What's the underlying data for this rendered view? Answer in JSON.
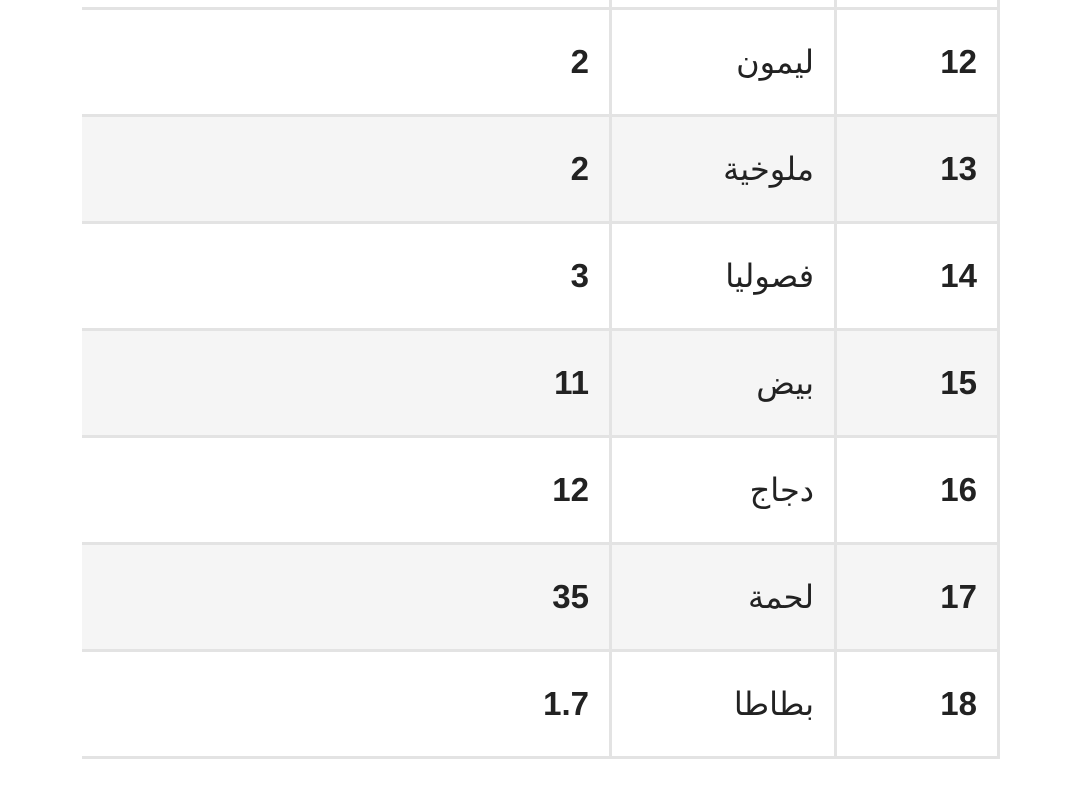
{
  "table": {
    "rows": [
      {
        "num": "",
        "name": "",
        "value": ""
      },
      {
        "num": "12",
        "name": "ليمون",
        "value": "2"
      },
      {
        "num": "13",
        "name": "ملوخية",
        "value": "2"
      },
      {
        "num": "14",
        "name": "فصوليا",
        "value": "3"
      },
      {
        "num": "15",
        "name": "بيض",
        "value": "11"
      },
      {
        "num": "16",
        "name": "دجاج",
        "value": "12"
      },
      {
        "num": "17",
        "name": "لحمة",
        "value": "35"
      },
      {
        "num": "18",
        "name": "بطاطا",
        "value": "1.7"
      }
    ]
  },
  "colors": {
    "border": "#e3e3e3",
    "stripe": "#f5f5f5",
    "text": "#222222"
  }
}
